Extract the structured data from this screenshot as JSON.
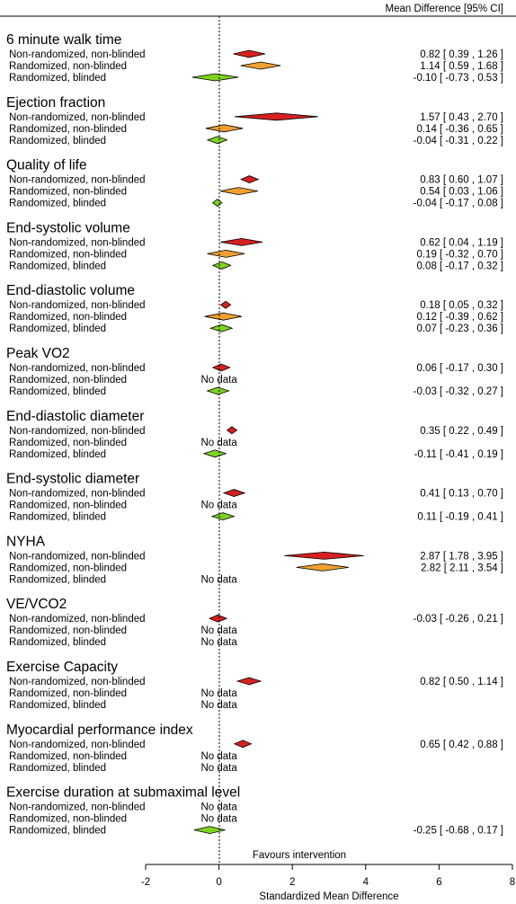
{
  "chart_data": {
    "type": "forest",
    "header_right": "Mean Difference [95% CI]",
    "xlabel": "Standardized Mean Difference",
    "annotation": "Favours intervention",
    "xlim": [
      -2,
      8
    ],
    "xticks": [
      "-2",
      "0",
      "2",
      "4",
      "6",
      "8"
    ],
    "reference_line": 0,
    "no_data_label": "No data",
    "colors": {
      "Non-randomized, non-blinded": "#d62020",
      "Randomized, non-blinded": "#f0a030",
      "Randomized, blinded": "#7ed321"
    },
    "groups": [
      {
        "name": "6 minute walk time",
        "rows": [
          {
            "label": "Non-randomized, non-blinded",
            "est": 0.82,
            "lo": 0.39,
            "hi": 1.26,
            "ci_text": "0.82 [ 0.39 , 1.26 ]"
          },
          {
            "label": "Randomized, non-blinded",
            "est": 1.14,
            "lo": 0.59,
            "hi": 1.68,
            "ci_text": "1.14 [ 0.59 , 1.68 ]"
          },
          {
            "label": "Randomized, blinded",
            "est": -0.1,
            "lo": -0.73,
            "hi": 0.53,
            "ci_text": "-0.10 [ -0.73 , 0.53 ]"
          }
        ]
      },
      {
        "name": "Ejection fraction",
        "rows": [
          {
            "label": "Non-randomized, non-blinded",
            "est": 1.57,
            "lo": 0.43,
            "hi": 2.7,
            "ci_text": "1.57 [ 0.43 , 2.70 ]"
          },
          {
            "label": "Randomized, non-blinded",
            "est": 0.14,
            "lo": -0.36,
            "hi": 0.65,
            "ci_text": "0.14 [ -0.36 , 0.65 ]"
          },
          {
            "label": "Randomized, blinded",
            "est": -0.04,
            "lo": -0.31,
            "hi": 0.22,
            "ci_text": "-0.04 [ -0.31 , 0.22 ]"
          }
        ]
      },
      {
        "name": "Quality of life",
        "rows": [
          {
            "label": "Non-randomized, non-blinded",
            "est": 0.83,
            "lo": 0.6,
            "hi": 1.07,
            "ci_text": "0.83 [ 0.60 , 1.07 ]"
          },
          {
            "label": "Randomized, non-blinded",
            "est": 0.54,
            "lo": 0.03,
            "hi": 1.06,
            "ci_text": "0.54 [ 0.03 , 1.06 ]"
          },
          {
            "label": "Randomized, blinded",
            "est": -0.04,
            "lo": -0.17,
            "hi": 0.08,
            "ci_text": "-0.04 [ -0.17 , 0.08 ]"
          }
        ]
      },
      {
        "name": "End-systolic volume",
        "rows": [
          {
            "label": "Non-randomized, non-blinded",
            "est": 0.62,
            "lo": 0.04,
            "hi": 1.19,
            "ci_text": "0.62 [ 0.04 , 1.19 ]"
          },
          {
            "label": "Randomized, non-blinded",
            "est": 0.19,
            "lo": -0.32,
            "hi": 0.7,
            "ci_text": "0.19 [ -0.32 , 0.70 ]"
          },
          {
            "label": "Randomized, blinded",
            "est": 0.08,
            "lo": -0.17,
            "hi": 0.32,
            "ci_text": "0.08 [ -0.17 , 0.32 ]"
          }
        ]
      },
      {
        "name": "End-diastolic volume",
        "rows": [
          {
            "label": "Non-randomized, non-blinded",
            "est": 0.18,
            "lo": 0.05,
            "hi": 0.32,
            "ci_text": "0.18 [ 0.05 , 0.32 ]"
          },
          {
            "label": "Randomized, non-blinded",
            "est": 0.12,
            "lo": -0.39,
            "hi": 0.62,
            "ci_text": "0.12 [ -0.39 , 0.62 ]"
          },
          {
            "label": "Randomized, blinded",
            "est": 0.07,
            "lo": -0.23,
            "hi": 0.36,
            "ci_text": "0.07 [ -0.23 , 0.36 ]"
          }
        ]
      },
      {
        "name": "Peak VO2",
        "rows": [
          {
            "label": "Non-randomized, non-blinded",
            "est": 0.06,
            "lo": -0.17,
            "hi": 0.3,
            "ci_text": "0.06 [ -0.17 , 0.30 ]"
          },
          {
            "label": "Randomized, non-blinded",
            "est": null,
            "lo": null,
            "hi": null,
            "ci_text": ""
          },
          {
            "label": "Randomized, blinded",
            "est": -0.03,
            "lo": -0.32,
            "hi": 0.27,
            "ci_text": "-0.03 [ -0.32 , 0.27 ]"
          }
        ]
      },
      {
        "name": "End-diastolic diameter",
        "rows": [
          {
            "label": "Non-randomized, non-blinded",
            "est": 0.35,
            "lo": 0.22,
            "hi": 0.49,
            "ci_text": "0.35 [ 0.22 , 0.49 ]"
          },
          {
            "label": "Randomized, non-blinded",
            "est": null,
            "lo": null,
            "hi": null,
            "ci_text": ""
          },
          {
            "label": "Randomized, blinded",
            "est": -0.11,
            "lo": -0.41,
            "hi": 0.19,
            "ci_text": "-0.11 [ -0.41 , 0.19 ]"
          }
        ]
      },
      {
        "name": "End-systolic diameter",
        "rows": [
          {
            "label": "Non-randomized, non-blinded",
            "est": 0.41,
            "lo": 0.13,
            "hi": 0.7,
            "ci_text": "0.41 [ 0.13 , 0.70 ]"
          },
          {
            "label": "Randomized, non-blinded",
            "est": null,
            "lo": null,
            "hi": null,
            "ci_text": ""
          },
          {
            "label": "Randomized, blinded",
            "est": 0.11,
            "lo": -0.19,
            "hi": 0.41,
            "ci_text": "0.11 [ -0.19 , 0.41 ]"
          }
        ]
      },
      {
        "name": "NYHA",
        "rows": [
          {
            "label": "Non-randomized, non-blinded",
            "est": 2.87,
            "lo": 1.78,
            "hi": 3.95,
            "ci_text": "2.87 [ 1.78 , 3.95 ]"
          },
          {
            "label": "Randomized, non-blinded",
            "est": 2.82,
            "lo": 2.11,
            "hi": 3.54,
            "ci_text": "2.82 [ 2.11 , 3.54 ]"
          },
          {
            "label": "Randomized, blinded",
            "est": null,
            "lo": null,
            "hi": null,
            "ci_text": ""
          }
        ]
      },
      {
        "name": "VE/VCO2",
        "rows": [
          {
            "label": "Non-randomized, non-blinded",
            "est": -0.03,
            "lo": -0.26,
            "hi": 0.21,
            "ci_text": "-0.03 [ -0.26 , 0.21 ]"
          },
          {
            "label": "Randomized, non-blinded",
            "est": null,
            "lo": null,
            "hi": null,
            "ci_text": ""
          },
          {
            "label": "Randomized, blinded",
            "est": null,
            "lo": null,
            "hi": null,
            "ci_text": ""
          }
        ]
      },
      {
        "name": "Exercise Capacity",
        "rows": [
          {
            "label": "Non-randomized, non-blinded",
            "est": 0.82,
            "lo": 0.5,
            "hi": 1.14,
            "ci_text": "0.82 [ 0.50 , 1.14 ]"
          },
          {
            "label": "Randomized, non-blinded",
            "est": null,
            "lo": null,
            "hi": null,
            "ci_text": ""
          },
          {
            "label": "Randomized, blinded",
            "est": null,
            "lo": null,
            "hi": null,
            "ci_text": ""
          }
        ]
      },
      {
        "name": "Myocardial performance index",
        "rows": [
          {
            "label": "Non-randomized, non-blinded",
            "est": 0.65,
            "lo": 0.42,
            "hi": 0.88,
            "ci_text": "0.65 [ 0.42 , 0.88 ]"
          },
          {
            "label": "Randomized, non-blinded",
            "est": null,
            "lo": null,
            "hi": null,
            "ci_text": ""
          },
          {
            "label": "Randomized, blinded",
            "est": null,
            "lo": null,
            "hi": null,
            "ci_text": ""
          }
        ]
      },
      {
        "name": "Exercise duration at submaximal level",
        "rows": [
          {
            "label": "Non-randomized, non-blinded",
            "est": null,
            "lo": null,
            "hi": null,
            "ci_text": ""
          },
          {
            "label": "Randomized, non-blinded",
            "est": null,
            "lo": null,
            "hi": null,
            "ci_text": ""
          },
          {
            "label": "Randomized, blinded",
            "est": -0.25,
            "lo": -0.68,
            "hi": 0.17,
            "ci_text": "-0.25 [ -0.68 , 0.17 ]"
          }
        ]
      }
    ]
  }
}
